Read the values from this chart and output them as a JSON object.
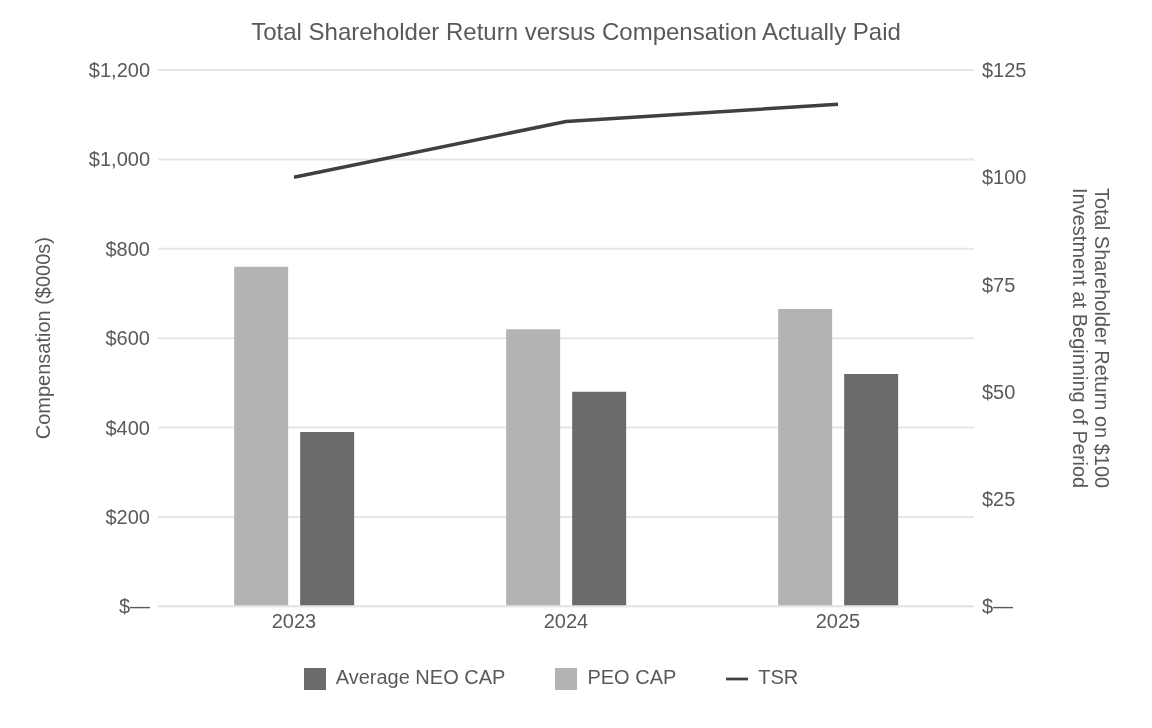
{
  "chart_data": {
    "type": "bar",
    "title": "Total Shareholder Return versus Compensation Actually Paid",
    "ylabel": "Compensation ($000s)",
    "y2label": "Total Shareholder Return on $100 Investment at Beginning of Period",
    "categories": [
      "2023",
      "2024",
      "2025"
    ],
    "series": [
      {
        "name": "PEO CAP",
        "color": "#b3b3b3",
        "values": [
          760,
          620,
          665
        ]
      },
      {
        "name": "Average NEO CAP",
        "color": "#6b6b6b",
        "values": [
          390,
          480,
          520
        ]
      },
      {
        "name": "TSR",
        "type": "line",
        "axis": "y2",
        "color": "#404040",
        "values": [
          100,
          113,
          117
        ]
      }
    ],
    "ylim": [
      0,
      1200
    ],
    "yticks": [
      {
        "value": 0,
        "label": "$—"
      },
      {
        "value": 200,
        "label": "$200"
      },
      {
        "value": 400,
        "label": "$400"
      },
      {
        "value": 600,
        "label": "$600"
      },
      {
        "value": 800,
        "label": "$800"
      },
      {
        "value": 1000,
        "label": "$1,000"
      },
      {
        "value": 1200,
        "label": "$1,200"
      }
    ],
    "y2lim": [
      0,
      125
    ],
    "y2ticks": [
      {
        "value": 0,
        "label": "$—"
      },
      {
        "value": 25,
        "label": "$25"
      },
      {
        "value": 50,
        "label": "$50"
      },
      {
        "value": 75,
        "label": "$75"
      },
      {
        "value": 100,
        "label": "$100"
      },
      {
        "value": 125,
        "label": "$125"
      }
    ],
    "grid": "y",
    "legend": "bottom",
    "marker": "none"
  }
}
